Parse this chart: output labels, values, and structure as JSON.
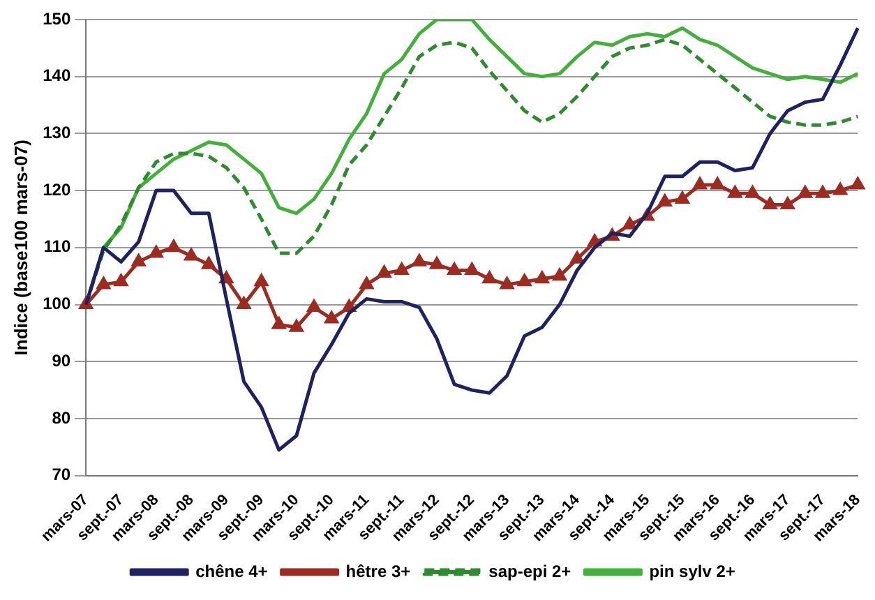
{
  "chart_data": {
    "type": "line",
    "ylabel": "Indice (base100 mars-07)",
    "categories": [
      "mars-07",
      null,
      "sept.-07",
      null,
      "mars-08",
      null,
      "sept.-08",
      null,
      "mars-09",
      null,
      "sept.-09",
      null,
      "mars-10",
      null,
      "sept.-10",
      null,
      "mars-11",
      null,
      "sept.-11",
      null,
      "mars-12",
      null,
      "sept.-12",
      null,
      "mars-13",
      null,
      "sept.-13",
      null,
      "mars-14",
      null,
      "sept.-14",
      null,
      "mars-15",
      null,
      "sept.-15",
      null,
      "mars-16",
      null,
      "sept.-16",
      null,
      "mars-17",
      null,
      "sept.-17",
      null,
      "mars-18"
    ],
    "series": [
      {
        "name": "chêne 4+",
        "color": "#1f2160",
        "marker": "none",
        "line_style": "solid",
        "values": [
          100,
          110,
          107.5,
          111,
          120,
          120,
          116,
          116,
          101,
          86.5,
          82,
          74.5,
          77,
          88,
          93,
          98.5,
          101,
          100.5,
          100.5,
          99.5,
          94,
          86,
          85,
          84.5,
          87.5,
          94.5,
          96,
          100,
          106,
          110,
          112.5,
          112,
          116,
          122.5,
          122.5,
          125,
          125,
          123.5,
          124,
          130,
          134,
          135.5,
          136,
          142,
          148.5
        ]
      },
      {
        "name": "hêtre 3+",
        "color": "#9c2b22",
        "marker": "triangle",
        "line_style": "solid",
        "values": [
          100,
          103.5,
          104,
          107.5,
          109,
          110,
          108.5,
          107,
          104.5,
          100,
          104,
          96.5,
          96,
          99.5,
          97.5,
          99.5,
          103.5,
          105.5,
          106,
          107.5,
          107,
          106,
          106,
          104.5,
          103.5,
          104,
          104.5,
          105,
          108,
          111,
          112,
          114,
          115.5,
          118,
          118.5,
          121,
          121,
          119.5,
          119.5,
          117.5,
          117.5,
          119.5,
          119.5,
          120,
          121
        ]
      },
      {
        "name": "sap-epi 2+",
        "color": "#2e8b2e",
        "marker": "none",
        "line_style": "dashed",
        "values": [
          100,
          109.5,
          114,
          120.5,
          125,
          126.5,
          126.5,
          126,
          124,
          120.5,
          115,
          109,
          109,
          112,
          117.5,
          124.5,
          128,
          133,
          138,
          143.5,
          145.5,
          146,
          145,
          141,
          137.5,
          134,
          132,
          133.5,
          136.5,
          140,
          143.5,
          145,
          145.5,
          146.5,
          145.5,
          143,
          140.5,
          138,
          135.5,
          133,
          132,
          131.5,
          131.5,
          132,
          133
        ]
      },
      {
        "name": "pin sylv 2+",
        "color": "#44b03c",
        "marker": "none",
        "line_style": "solid",
        "values": [
          100,
          110,
          113.5,
          120.5,
          123,
          125.5,
          127,
          128.5,
          128,
          125.5,
          123,
          117,
          116,
          118.5,
          123,
          129,
          133.5,
          140.5,
          143,
          147.5,
          150,
          150,
          150,
          146.5,
          143.5,
          140.5,
          140,
          140.5,
          143.5,
          146,
          145.5,
          147,
          147.5,
          147,
          148.5,
          146.5,
          145.5,
          143.5,
          141.5,
          140.5,
          139.5,
          140,
          139.5,
          139,
          140.5
        ]
      }
    ],
    "ylim": [
      70,
      150
    ],
    "yticks": [
      70,
      80,
      90,
      100,
      110,
      120,
      130,
      140,
      150
    ],
    "grid": "y",
    "legend": "bottom"
  }
}
